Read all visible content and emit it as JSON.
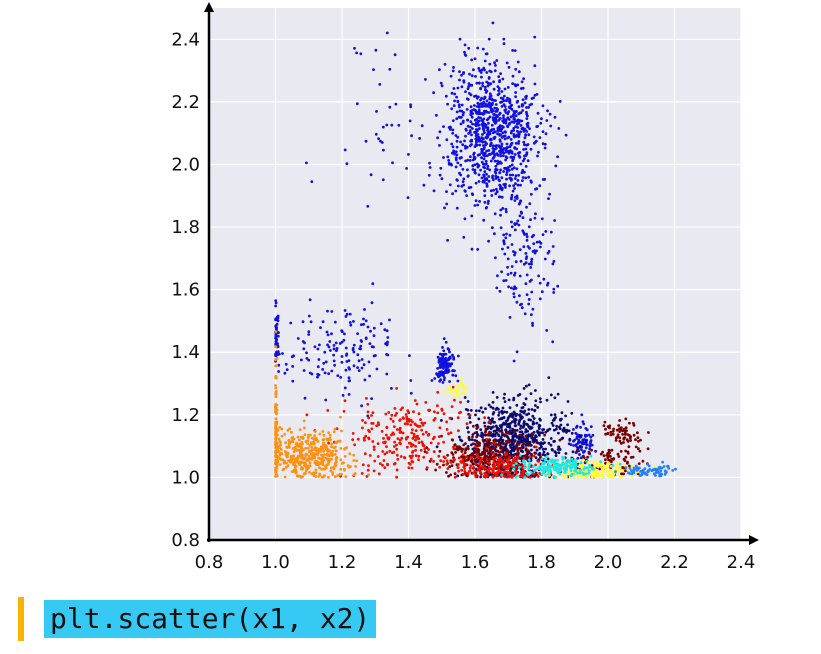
{
  "chart_data": {
    "type": "scatter",
    "title": "",
    "xlabel": "",
    "ylabel": "",
    "xlim": [
      0.8,
      2.4
    ],
    "ylim": [
      0.8,
      2.5
    ],
    "xticks": [
      "0.8",
      "1.0",
      "1.2",
      "1.4",
      "1.6",
      "1.8",
      "2.0",
      "2.2",
      "2.4"
    ],
    "yticks": [
      "0.8",
      "1.0",
      "1.2",
      "1.4",
      "1.6",
      "1.8",
      "2.0",
      "2.2",
      "2.4"
    ],
    "grid": true,
    "background": "#e9e9f2",
    "colors": {
      "blue": "#1010e0",
      "navy": "#0a0a70",
      "dark_red": "#7a0000",
      "red": "#f01000",
      "orange": "#ff9010",
      "yellow": "#ffff30",
      "cyan": "#20e8e0",
      "light_blue": "#2080ff"
    },
    "clusters": [
      {
        "color": "blue",
        "cx": 1.65,
        "cy": 2.1,
        "sx": 0.07,
        "sy": 0.12,
        "n": 900
      },
      {
        "color": "blue",
        "cx": 1.75,
        "cy": 1.72,
        "sx": 0.05,
        "sy": 0.12,
        "n": 150
      },
      {
        "color": "blue",
        "cx": 1.2,
        "cy": 1.4,
        "sx": 0.1,
        "sy": 0.07,
        "n": 160
      },
      {
        "color": "blue",
        "cx": 1.0,
        "cy": 1.47,
        "sx": 0.005,
        "sy": 0.04,
        "n": 50
      },
      {
        "color": "blue",
        "cx": 1.51,
        "cy": 1.36,
        "sx": 0.015,
        "sy": 0.025,
        "n": 120
      },
      {
        "color": "blue",
        "cx": 1.92,
        "cy": 1.11,
        "sx": 0.02,
        "sy": 0.03,
        "n": 80
      },
      {
        "color": "blue",
        "cx": 1.33,
        "cy": 2.15,
        "sx": 0.08,
        "sy": 0.15,
        "n": 45
      },
      {
        "color": "navy",
        "cx": 1.72,
        "cy": 1.12,
        "sx": 0.08,
        "sy": 0.06,
        "n": 700
      },
      {
        "color": "dark_red",
        "cx": 1.65,
        "cy": 1.07,
        "sx": 0.08,
        "sy": 0.04,
        "n": 320
      },
      {
        "color": "dark_red",
        "cx": 2.04,
        "cy": 1.14,
        "sx": 0.03,
        "sy": 0.02,
        "n": 60
      },
      {
        "color": "dark_red",
        "cx": 2.02,
        "cy": 1.05,
        "sx": 0.05,
        "sy": 0.025,
        "n": 80
      },
      {
        "color": "red",
        "cx": 1.4,
        "cy": 1.13,
        "sx": 0.1,
        "sy": 0.06,
        "n": 260
      },
      {
        "color": "red",
        "cx": 1.66,
        "cy": 1.03,
        "sx": 0.06,
        "sy": 0.025,
        "n": 170
      },
      {
        "color": "orange",
        "cx": 1.1,
        "cy": 1.07,
        "sx": 0.06,
        "sy": 0.04,
        "n": 420
      },
      {
        "color": "orange",
        "cx": 1.0,
        "cy": 1.15,
        "sx": 0.003,
        "sy": 0.12,
        "n": 90
      },
      {
        "color": "yellow",
        "cx": 1.95,
        "cy": 1.02,
        "sx": 0.06,
        "sy": 0.015,
        "n": 160
      },
      {
        "color": "yellow",
        "cx": 1.55,
        "cy": 1.28,
        "sx": 0.02,
        "sy": 0.015,
        "n": 25
      },
      {
        "color": "cyan",
        "cx": 1.85,
        "cy": 1.03,
        "sx": 0.06,
        "sy": 0.015,
        "n": 180
      },
      {
        "color": "light_blue",
        "cx": 2.12,
        "cy": 1.02,
        "sx": 0.04,
        "sy": 0.01,
        "n": 70
      }
    ]
  },
  "caption": {
    "code": "plt.scatter(x1, x2)"
  }
}
